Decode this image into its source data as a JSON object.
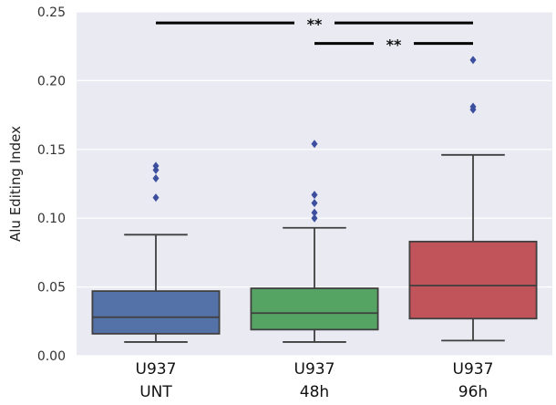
{
  "chart_data": {
    "type": "box",
    "title": "",
    "xlabel": "",
    "ylabel": "Alu Editing Index",
    "ylim": [
      0,
      0.25
    ],
    "yticks": [
      0.0,
      0.05,
      0.1,
      0.15,
      0.2,
      0.25
    ],
    "ytick_labels": [
      "0.00",
      "0.05",
      "0.10",
      "0.15",
      "0.20",
      "0.25"
    ],
    "grid": true,
    "categories": [
      {
        "line1": "U937",
        "line2": "UNT"
      },
      {
        "line1": "U937",
        "line2": "48h"
      },
      {
        "line1": "U937",
        "line2": "96h"
      }
    ],
    "series": [
      {
        "color": "#5471A8",
        "whisker_low": 0.01,
        "q1": 0.016,
        "median": 0.028,
        "q3": 0.047,
        "whisker_high": 0.088,
        "outliers": [
          0.115,
          0.129,
          0.135,
          0.138
        ]
      },
      {
        "color": "#55A464",
        "whisker_low": 0.01,
        "q1": 0.019,
        "median": 0.031,
        "q3": 0.049,
        "whisker_high": 0.093,
        "outliers": [
          0.1,
          0.104,
          0.111,
          0.117,
          0.154
        ]
      },
      {
        "color": "#C1535A",
        "whisker_low": 0.011,
        "q1": 0.027,
        "median": 0.051,
        "q3": 0.083,
        "whisker_high": 0.146,
        "outliers": [
          0.179,
          0.181,
          0.215
        ]
      }
    ],
    "significance": [
      {
        "from": 0,
        "to": 2,
        "y": 0.242,
        "label": "**"
      },
      {
        "from": 1,
        "to": 2,
        "y": 0.227,
        "label": "**"
      }
    ],
    "colors": {
      "background": "#EAEAF2",
      "grid": "#FFFFFF",
      "lines": "#3F3F3F",
      "outlier": "#3C4E9E"
    }
  }
}
